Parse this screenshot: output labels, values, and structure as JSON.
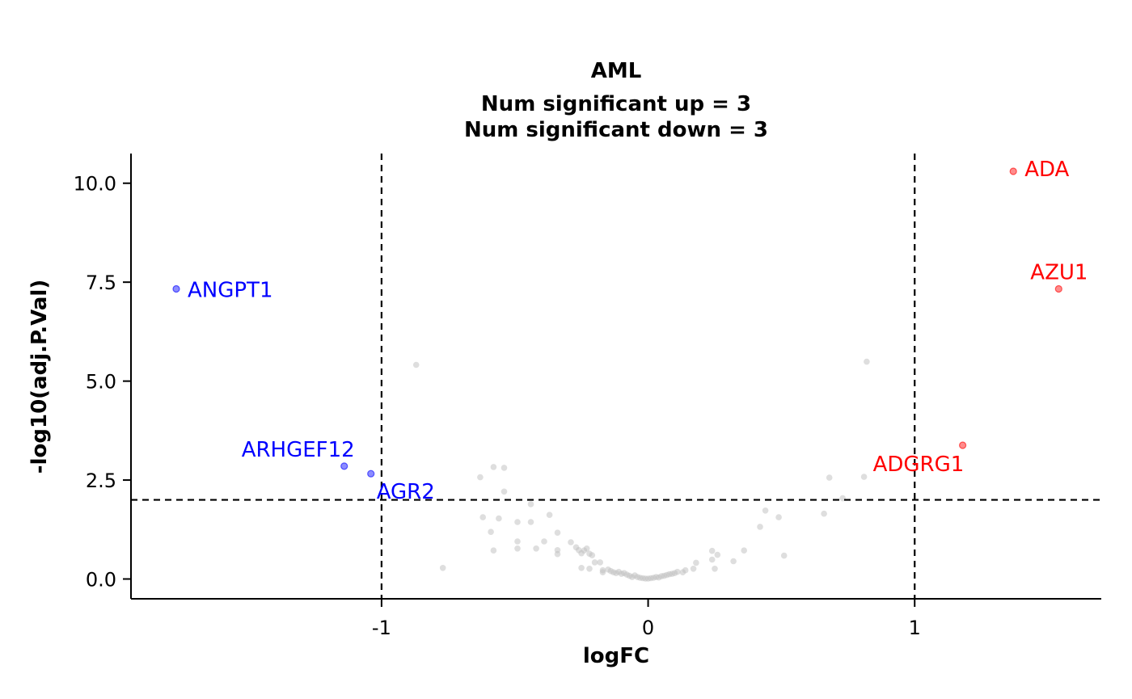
{
  "chart_data": {
    "type": "scatter",
    "title": "AML",
    "subtitle_lines": [
      "Num significant up = 3",
      "Num significant down = 3"
    ],
    "xlabel": "logFC",
    "ylabel": "-log10(adj.P.Val)",
    "xlim": [
      -1.94,
      1.7
    ],
    "ylim": [
      -0.5,
      10.75
    ],
    "x_ticks": [
      {
        "value": -1,
        "label": "-1"
      },
      {
        "value": 0,
        "label": "0"
      },
      {
        "value": 1,
        "label": "1"
      }
    ],
    "y_ticks": [
      {
        "value": 0,
        "label": "0.0"
      },
      {
        "value": 2.5,
        "label": "2.5"
      },
      {
        "value": 5,
        "label": "5.0"
      },
      {
        "value": 7.5,
        "label": "7.5"
      },
      {
        "value": 10,
        "label": "10.0"
      }
    ],
    "thresholds": {
      "logfc": [
        -1,
        1
      ],
      "neg_log10_p": 2.0
    },
    "colors": {
      "up": "#ff0000",
      "down": "#0000ff",
      "ns": "#bebebe"
    },
    "significant": [
      {
        "gene": "ADA",
        "x": 1.37,
        "y": 10.3,
        "direction": "up"
      },
      {
        "gene": "AZU1",
        "x": 1.54,
        "y": 7.33,
        "direction": "up"
      },
      {
        "gene": "ADGRG1",
        "x": 1.18,
        "y": 3.38,
        "direction": "up"
      },
      {
        "gene": "ANGPT1",
        "x": -1.77,
        "y": 7.33,
        "direction": "down"
      },
      {
        "gene": "ARHGEF12",
        "x": -1.14,
        "y": 2.85,
        "direction": "down"
      },
      {
        "gene": "AGR2",
        "x": -1.04,
        "y": 2.66,
        "direction": "down"
      }
    ],
    "nonsignificant": [
      [
        -0.87,
        5.41
      ],
      [
        0.82,
        5.49
      ],
      [
        -0.58,
        2.83
      ],
      [
        -0.54,
        2.81
      ],
      [
        -0.63,
        2.57
      ],
      [
        -0.54,
        2.21
      ],
      [
        -0.44,
        1.89
      ],
      [
        -0.62,
        1.56
      ],
      [
        -0.56,
        1.53
      ],
      [
        -0.49,
        1.44
      ],
      [
        -0.44,
        1.44
      ],
      [
        -0.37,
        1.62
      ],
      [
        -0.59,
        1.19
      ],
      [
        -0.49,
        0.95
      ],
      [
        -0.39,
        0.95
      ],
      [
        -0.34,
        1.17
      ],
      [
        -0.58,
        0.72
      ],
      [
        -0.49,
        0.77
      ],
      [
        -0.42,
        0.77
      ],
      [
        -0.34,
        0.73
      ],
      [
        -0.34,
        0.63
      ],
      [
        -0.29,
        0.93
      ],
      [
        -0.27,
        0.8
      ],
      [
        -0.26,
        0.73
      ],
      [
        -0.25,
        0.65
      ],
      [
        -0.24,
        0.72
      ],
      [
        -0.23,
        0.77
      ],
      [
        -0.22,
        0.64
      ],
      [
        -0.21,
        0.6
      ],
      [
        -0.2,
        0.42
      ],
      [
        -0.18,
        0.42
      ],
      [
        -0.25,
        0.28
      ],
      [
        -0.22,
        0.26
      ],
      [
        -0.17,
        0.22
      ],
      [
        -0.17,
        0.17
      ],
      [
        -0.15,
        0.24
      ],
      [
        -0.14,
        0.2
      ],
      [
        -0.13,
        0.17
      ],
      [
        -0.12,
        0.15
      ],
      [
        -0.11,
        0.18
      ],
      [
        -0.1,
        0.13
      ],
      [
        -0.09,
        0.15
      ],
      [
        -0.08,
        0.11
      ],
      [
        -0.07,
        0.08
      ],
      [
        -0.06,
        0.05
      ],
      [
        -0.05,
        0.09
      ],
      [
        -0.04,
        0.05
      ],
      [
        -0.03,
        0.03
      ],
      [
        -0.02,
        0.02
      ],
      [
        -0.01,
        0.01
      ],
      [
        0.0,
        0.01
      ],
      [
        0.01,
        0.02
      ],
      [
        0.02,
        0.03
      ],
      [
        0.03,
        0.05
      ],
      [
        0.04,
        0.04
      ],
      [
        0.05,
        0.07
      ],
      [
        0.06,
        0.08
      ],
      [
        0.07,
        0.1
      ],
      [
        0.08,
        0.12
      ],
      [
        0.09,
        0.13
      ],
      [
        0.1,
        0.15
      ],
      [
        0.11,
        0.18
      ],
      [
        0.13,
        0.17
      ],
      [
        0.14,
        0.22
      ],
      [
        0.17,
        0.26
      ],
      [
        0.18,
        0.41
      ],
      [
        0.24,
        0.71
      ],
      [
        0.24,
        0.49
      ],
      [
        0.26,
        0.61
      ],
      [
        0.25,
        0.26
      ],
      [
        0.32,
        0.45
      ],
      [
        0.36,
        0.72
      ],
      [
        0.42,
        1.32
      ],
      [
        0.44,
        1.73
      ],
      [
        0.49,
        1.56
      ],
      [
        0.51,
        0.59
      ],
      [
        -0.77,
        0.28
      ],
      [
        0.66,
        1.65
      ],
      [
        0.68,
        2.56
      ],
      [
        0.73,
        2.04
      ],
      [
        0.81,
        2.58
      ]
    ]
  }
}
